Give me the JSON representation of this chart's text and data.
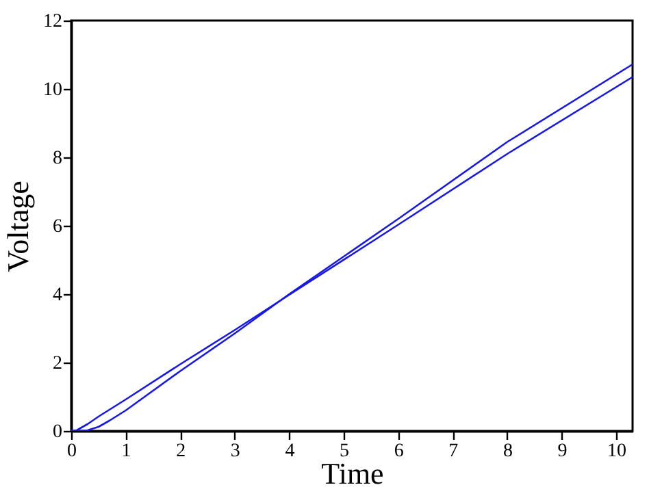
{
  "chart_data": {
    "type": "line",
    "xlabel": "Time",
    "ylabel": "Voltage",
    "xlim": [
      0,
      10.3
    ],
    "ylim": [
      0,
      12
    ],
    "xticks": [
      0,
      1,
      2,
      3,
      4,
      5,
      6,
      7,
      8,
      9,
      10
    ],
    "yticks": [
      0,
      2,
      4,
      6,
      8,
      10,
      12
    ],
    "grid": false,
    "legend": false,
    "line_style": "solid",
    "marker": "none",
    "series": [
      {
        "color": "#1a1adb",
        "x": [
          0,
          0.1,
          0.3,
          0.5,
          1,
          2,
          3,
          4,
          6,
          8,
          10.3
        ],
        "values": [
          0,
          0.02,
          0.2,
          0.42,
          0.92,
          1.95,
          2.95,
          3.98,
          6.03,
          8.1,
          10.35
        ]
      },
      {
        "color": "#1a1adb",
        "x": [
          0,
          0.3,
          0.5,
          0.7,
          1,
          2,
          3,
          4,
          6,
          8,
          10.3
        ],
        "values": [
          0,
          0.02,
          0.12,
          0.3,
          0.6,
          1.75,
          2.85,
          4.0,
          6.2,
          8.45,
          10.72
        ]
      }
    ]
  }
}
